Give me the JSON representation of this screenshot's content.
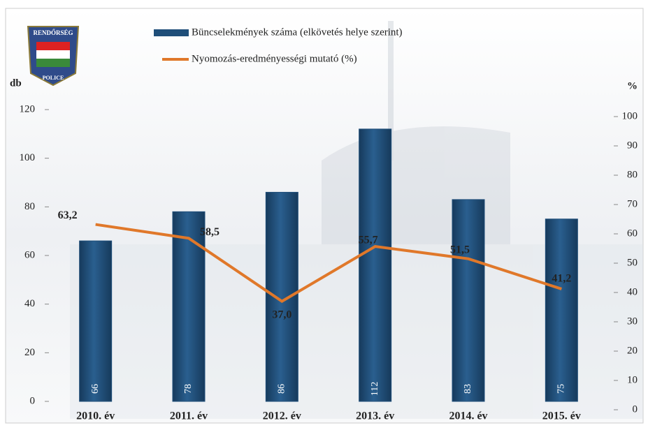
{
  "logo": {
    "top": "RENDŐRSÉG",
    "bottom": "POLICE"
  },
  "chart_data": {
    "type": "bar",
    "y_label": "db",
    "y2_label": "%",
    "categories": [
      "2010. év",
      "2011. év",
      "2012. év",
      "2013. év",
      "2014. év",
      "2015. év"
    ],
    "series": [
      {
        "name": "Büncselekmények száma (elkövetés helye szerint)",
        "type": "bar",
        "color": "#1f4e79",
        "values": [
          66,
          78,
          86,
          112,
          83,
          75
        ]
      },
      {
        "name": "Nyomozás-eredményességi mutató (%)",
        "type": "line",
        "axis": "y2",
        "color": "#e0782a",
        "values": [
          63.2,
          58.5,
          37.0,
          55.7,
          51.5,
          41.2
        ],
        "value_labels": [
          "63,2",
          "58,5",
          "37,0",
          "55,7",
          "51,5",
          "41,2"
        ]
      }
    ],
    "ylim": [
      0,
      120
    ],
    "yticks": [
      0,
      20,
      40,
      60,
      80,
      100,
      120
    ],
    "y2lim": [
      0,
      100
    ],
    "y2ticks": [
      0,
      10,
      20,
      30,
      40,
      50,
      60,
      70,
      80,
      90,
      100
    ]
  }
}
